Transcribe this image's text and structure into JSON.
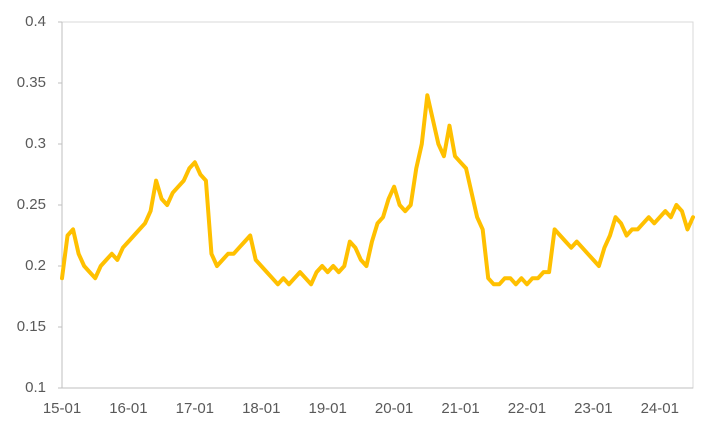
{
  "chart_data": {
    "type": "line",
    "categories": [
      "15-01",
      null,
      null,
      null,
      null,
      null,
      null,
      null,
      null,
      null,
      null,
      null,
      "16-01",
      null,
      null,
      null,
      null,
      null,
      null,
      null,
      null,
      null,
      null,
      null,
      "17-01",
      null,
      null,
      null,
      null,
      null,
      null,
      null,
      null,
      null,
      null,
      null,
      "18-01",
      null,
      null,
      null,
      null,
      null,
      null,
      null,
      null,
      null,
      null,
      null,
      "19-01",
      null,
      null,
      null,
      null,
      null,
      null,
      null,
      null,
      null,
      null,
      null,
      "20-01",
      null,
      null,
      null,
      null,
      null,
      null,
      null,
      null,
      null,
      null,
      null,
      "21-01",
      null,
      null,
      null,
      null,
      null,
      null,
      null,
      null,
      null,
      null,
      null,
      "22-01",
      null,
      null,
      null,
      null,
      null,
      null,
      null,
      null,
      null,
      null,
      null,
      "23-01",
      null,
      null,
      null,
      null,
      null,
      null,
      null,
      null,
      null,
      null,
      null,
      "24-01",
      null,
      null,
      null,
      null,
      null,
      null
    ],
    "values": [
      0.19,
      0.225,
      0.23,
      0.21,
      0.2,
      0.195,
      0.19,
      0.2,
      0.205,
      0.21,
      0.205,
      0.215,
      0.22,
      0.225,
      0.23,
      0.235,
      0.245,
      0.27,
      0.255,
      0.25,
      0.26,
      0.265,
      0.27,
      0.28,
      0.285,
      0.275,
      0.27,
      0.21,
      0.2,
      0.205,
      0.21,
      0.21,
      0.215,
      0.22,
      0.225,
      0.205,
      0.2,
      0.195,
      0.19,
      0.185,
      0.19,
      0.185,
      0.19,
      0.195,
      0.19,
      0.185,
      0.195,
      0.2,
      0.195,
      0.2,
      0.195,
      0.2,
      0.22,
      0.215,
      0.205,
      0.2,
      0.22,
      0.235,
      0.24,
      0.255,
      0.265,
      0.25,
      0.245,
      0.25,
      0.28,
      0.3,
      0.34,
      0.32,
      0.3,
      0.29,
      0.315,
      0.29,
      0.285,
      0.28,
      0.26,
      0.24,
      0.23,
      0.19,
      0.185,
      0.185,
      0.19,
      0.19,
      0.185,
      0.19,
      0.185,
      0.19,
      0.19,
      0.195,
      0.195,
      0.23,
      0.225,
      0.22,
      0.215,
      0.22,
      0.215,
      0.21,
      0.205,
      0.2,
      0.215,
      0.225,
      0.24,
      0.235,
      0.225,
      0.23,
      0.23,
      0.235,
      0.24,
      0.235,
      0.24,
      0.245,
      0.24,
      0.25,
      0.245,
      0.23,
      0.24
    ],
    "color": "#ffc000",
    "ylim": [
      0.1,
      0.4
    ],
    "yticks": [
      0.1,
      0.15,
      0.2,
      0.25,
      0.3,
      0.35,
      0.4
    ]
  }
}
